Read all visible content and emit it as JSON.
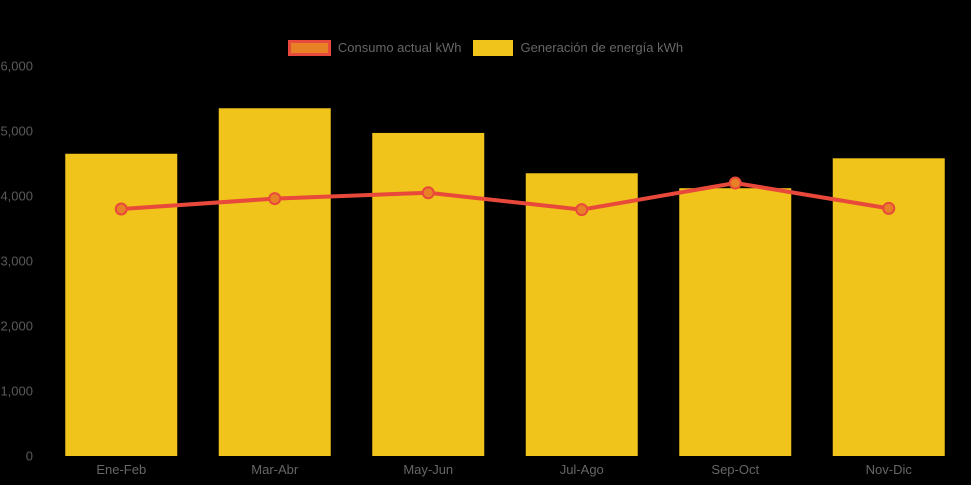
{
  "chart_data": {
    "type": "combo",
    "title": "",
    "categories": [
      "Ene-Feb",
      "Mar-Abr",
      "May-Jun",
      "Jul-Ago",
      "Sep-Oct",
      "Nov-Dic"
    ],
    "series": [
      {
        "name": "Consumo actual kWh",
        "type": "line",
        "color": "#e8493b",
        "marker_color": "#e88125",
        "values": [
          3800,
          3960,
          4050,
          3790,
          4200,
          3810
        ]
      },
      {
        "name": "Generación de energía kWh",
        "type": "bar",
        "color": "#f0c41b",
        "values": [
          4650,
          5350,
          4970,
          4350,
          4120,
          4580
        ]
      }
    ],
    "ylim": [
      0,
      6000
    ],
    "yticks": [
      {
        "value": 0,
        "label": "0"
      },
      {
        "value": 1000,
        "label": "1,000"
      },
      {
        "value": 2000,
        "label": "2,000"
      },
      {
        "value": 3000,
        "label": "3,000"
      },
      {
        "value": 4000,
        "label": "4,000"
      },
      {
        "value": 5000,
        "label": "5,000"
      },
      {
        "value": 6000,
        "label": "6,000"
      }
    ],
    "legend_position": "top",
    "grid": false,
    "background": "#000000",
    "y_tick_color": "#5a5a5a",
    "x_label_color": "#666666"
  }
}
